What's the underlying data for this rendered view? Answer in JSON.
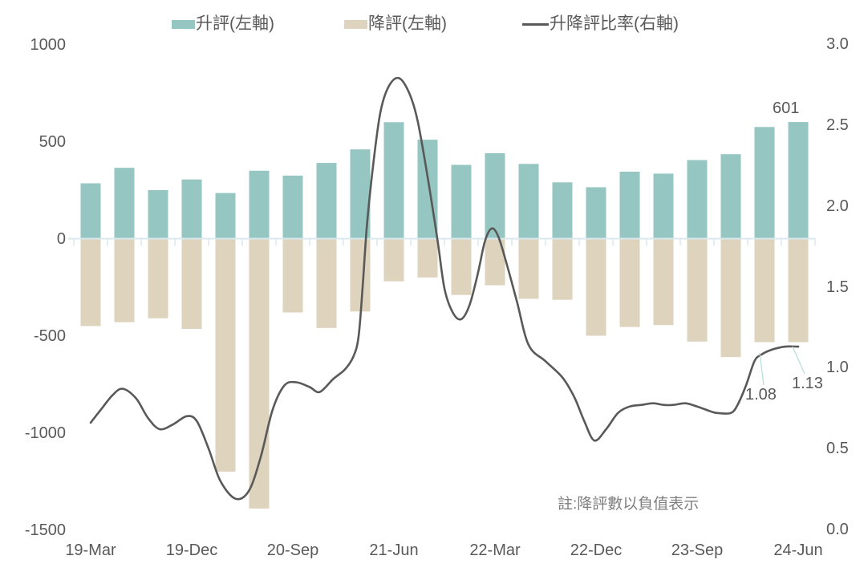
{
  "chart": {
    "legend": [
      {
        "label": "升評(左軸)",
        "type": "bar",
        "color": "#96c6c1"
      },
      {
        "label": "降評(左軸)",
        "type": "bar",
        "color": "#ded3bc"
      },
      {
        "label": "升降評比率(右軸)",
        "type": "line",
        "color": "#595959"
      }
    ],
    "note": "註:降評數以負值表示",
    "annotations": {
      "last_bar_value": "601",
      "ratio_mar24": "1.08",
      "ratio_jun24": "1.13"
    },
    "left_axis": {
      "labels": [
        "1000",
        "500",
        "0",
        "-500",
        "-1000",
        "-1500"
      ],
      "min": -1500,
      "max": 1000,
      "step": 500
    },
    "right_axis": {
      "labels": [
        "3.0",
        "2.5",
        "2.0",
        "1.5",
        "1.0",
        "0.5",
        "0.0"
      ],
      "min": 0.0,
      "max": 3.0,
      "step": 0.5
    },
    "x_axis": {
      "visible_labels": [
        "19-Mar",
        "19-Dec",
        "20-Sep",
        "21-Jun",
        "22-Mar",
        "22-Dec",
        "23-Sep",
        "24-Jun"
      ],
      "label_every_n": 3
    }
  },
  "chart_data": {
    "type": "combo (bar + smoothed line, dual axis)",
    "categories": [
      "19-Mar",
      "19-Jun",
      "19-Sep",
      "19-Dec",
      "20-Mar",
      "20-Jun",
      "20-Sep",
      "20-Dec",
      "21-Mar",
      "21-Jun",
      "21-Sep",
      "21-Dec",
      "22-Mar",
      "22-Jun",
      "22-Sep",
      "22-Dec",
      "23-Mar",
      "23-Jun",
      "23-Sep",
      "23-Dec",
      "24-Mar",
      "24-Jun"
    ],
    "series": [
      {
        "name": "升評(左軸)",
        "type": "bar",
        "axis": "left",
        "color": "#96c6c1",
        "values": [
          285,
          365,
          250,
          305,
          235,
          350,
          325,
          390,
          460,
          600,
          510,
          380,
          440,
          385,
          290,
          265,
          345,
          335,
          405,
          435,
          575,
          601
        ]
      },
      {
        "name": "降評(左軸)",
        "type": "bar",
        "axis": "left",
        "color": "#ded3bc",
        "values": [
          -450,
          -430,
          -410,
          -465,
          -1200,
          -1390,
          -380,
          -460,
          -375,
          -220,
          -200,
          -290,
          -240,
          -310,
          -315,
          -500,
          -455,
          -445,
          -530,
          -610,
          -533,
          -533
        ]
      },
      {
        "name": "升降評比率(右軸)",
        "type": "line",
        "axis": "right",
        "color": "#595959",
        "values": [
          0.66,
          0.87,
          0.62,
          0.7,
          0.19,
          0.3,
          0.91,
          0.86,
          1.31,
          2.79,
          2.18,
          1.3,
          1.85,
          1.14,
          0.94,
          0.55,
          0.76,
          0.78,
          0.76,
          0.72,
          1.08,
          1.13
        ]
      }
    ],
    "line_shape_points": [
      [
        1,
        0.66
      ],
      [
        1.3,
        0.74
      ],
      [
        1.65,
        0.83
      ],
      [
        1.95,
        0.87
      ],
      [
        2.35,
        0.81
      ],
      [
        2.7,
        0.69
      ],
      [
        3.05,
        0.62
      ],
      [
        3.45,
        0.65
      ],
      [
        3.85,
        0.7
      ],
      [
        4.15,
        0.67
      ],
      [
        4.5,
        0.5
      ],
      [
        4.85,
        0.3
      ],
      [
        5.3,
        0.19
      ],
      [
        5.7,
        0.24
      ],
      [
        6.05,
        0.45
      ],
      [
        6.4,
        0.74
      ],
      [
        6.75,
        0.89
      ],
      [
        7.1,
        0.91
      ],
      [
        7.5,
        0.88
      ],
      [
        7.8,
        0.85
      ],
      [
        8.2,
        0.93
      ],
      [
        8.55,
        0.99
      ],
      [
        8.8,
        1.07
      ],
      [
        8.95,
        1.19
      ],
      [
        9.07,
        1.49
      ],
      [
        9.2,
        1.88
      ],
      [
        9.4,
        2.28
      ],
      [
        9.6,
        2.58
      ],
      [
        9.85,
        2.74
      ],
      [
        10.15,
        2.79
      ],
      [
        10.45,
        2.7
      ],
      [
        10.7,
        2.53
      ],
      [
        11,
        2.18
      ],
      [
        11.3,
        1.78
      ],
      [
        11.5,
        1.49
      ],
      [
        11.75,
        1.34
      ],
      [
        12,
        1.3
      ],
      [
        12.25,
        1.39
      ],
      [
        12.5,
        1.59
      ],
      [
        12.7,
        1.78
      ],
      [
        12.9,
        1.86
      ],
      [
        13.1,
        1.81
      ],
      [
        13.35,
        1.64
      ],
      [
        13.65,
        1.41
      ],
      [
        14,
        1.14
      ],
      [
        14.5,
        1.04
      ],
      [
        15,
        0.94
      ],
      [
        15.35,
        0.82
      ],
      [
        15.65,
        0.67
      ],
      [
        15.95,
        0.55
      ],
      [
        16.3,
        0.62
      ],
      [
        16.65,
        0.72
      ],
      [
        17,
        0.76
      ],
      [
        17.35,
        0.77
      ],
      [
        17.7,
        0.78
      ],
      [
        18,
        0.77
      ],
      [
        18.3,
        0.77
      ],
      [
        18.65,
        0.78
      ],
      [
        19,
        0.76
      ],
      [
        19.4,
        0.73
      ],
      [
        19.6,
        0.72
      ],
      [
        20,
        0.72
      ],
      [
        20.2,
        0.77
      ],
      [
        20.45,
        0.89
      ],
      [
        20.7,
        1.04
      ],
      [
        20.9,
        1.08
      ],
      [
        21.2,
        1.11
      ],
      [
        21.6,
        1.13
      ],
      [
        22,
        1.13
      ]
    ],
    "title": "",
    "xlabel": "",
    "ylabel_left": "",
    "ylabel_right": "",
    "left_ylim": [
      -1500,
      1000
    ],
    "right_ylim": [
      0.0,
      3.0
    ],
    "grid": false,
    "legend_position": "top"
  },
  "colors": {
    "baseline": "#d9e9ef",
    "tick": "#d9e9ef",
    "axis_text": "#595959",
    "note_text": "#7f7f7f",
    "leader_line": "#b9ded9"
  }
}
